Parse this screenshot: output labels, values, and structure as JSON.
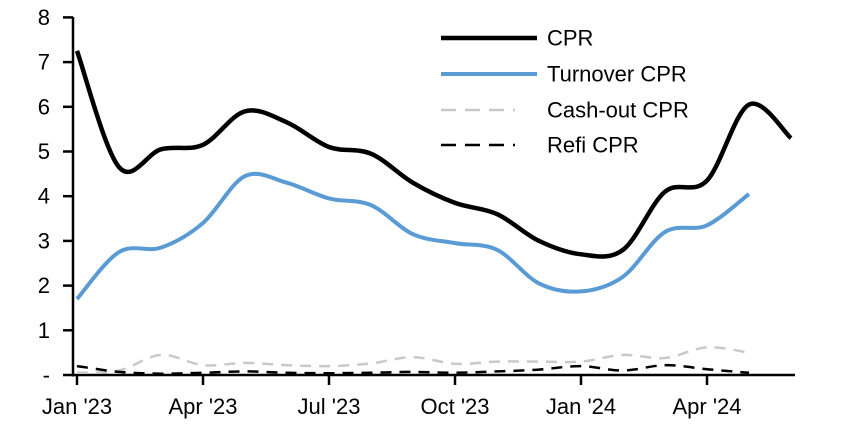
{
  "chart_data": {
    "type": "line",
    "title": "",
    "xlabel": "",
    "ylabel": "",
    "ylim": [
      0,
      8
    ],
    "grid": false,
    "legend_position": "top-center-inside",
    "y_tick_labels": [
      "-",
      "1",
      "2",
      "3",
      "4",
      "5",
      "6",
      "7",
      "8"
    ],
    "x_months": [
      "Jan '23",
      "Feb '23",
      "Mar '23",
      "Apr '23",
      "May '23",
      "Jun '23",
      "Jul '23",
      "Aug '23",
      "Sep '23",
      "Oct '23",
      "Nov '23",
      "Dec '23",
      "Jan '24",
      "Feb '24",
      "Mar '24",
      "Apr '24",
      "May '24",
      "Jun '24"
    ],
    "x_tick_labels": [
      "Jan '23",
      "Apr '23",
      "Jul '23",
      "Oct '23",
      "Jan '24",
      "Apr '24"
    ],
    "x_tick_month_indices": [
      0,
      3,
      6,
      9,
      12,
      15
    ],
    "series": [
      {
        "name": "CPR",
        "color": "#000000",
        "dash": "solid",
        "width": 4.5,
        "values": [
          7.25,
          4.65,
          5.05,
          5.15,
          5.9,
          5.65,
          5.1,
          4.95,
          4.3,
          3.85,
          3.6,
          3.0,
          2.7,
          2.8,
          4.1,
          4.35,
          6.05,
          5.3
        ]
      },
      {
        "name": "Turnover CPR",
        "color": "#5B9BD5",
        "dash": "solid",
        "width": 4,
        "values": [
          1.7,
          2.75,
          2.85,
          3.4,
          4.45,
          4.3,
          3.95,
          3.8,
          3.15,
          2.95,
          2.8,
          2.05,
          1.87,
          2.2,
          3.2,
          3.35,
          4.05
        ]
      },
      {
        "name": "Cash-out CPR",
        "color": "#C9C9C9",
        "dash": "dashed",
        "width": 2.5,
        "values": [
          0.05,
          0.1,
          0.45,
          0.22,
          0.27,
          0.22,
          0.2,
          0.26,
          0.4,
          0.25,
          0.3,
          0.3,
          0.3,
          0.45,
          0.38,
          0.62,
          0.5
        ]
      },
      {
        "name": "Refi CPR",
        "color": "#000000",
        "dash": "dashed",
        "width": 2.5,
        "values": [
          0.2,
          0.07,
          0.03,
          0.05,
          0.08,
          0.05,
          0.04,
          0.05,
          0.07,
          0.05,
          0.08,
          0.12,
          0.2,
          0.1,
          0.22,
          0.13,
          0.05
        ]
      }
    ]
  }
}
